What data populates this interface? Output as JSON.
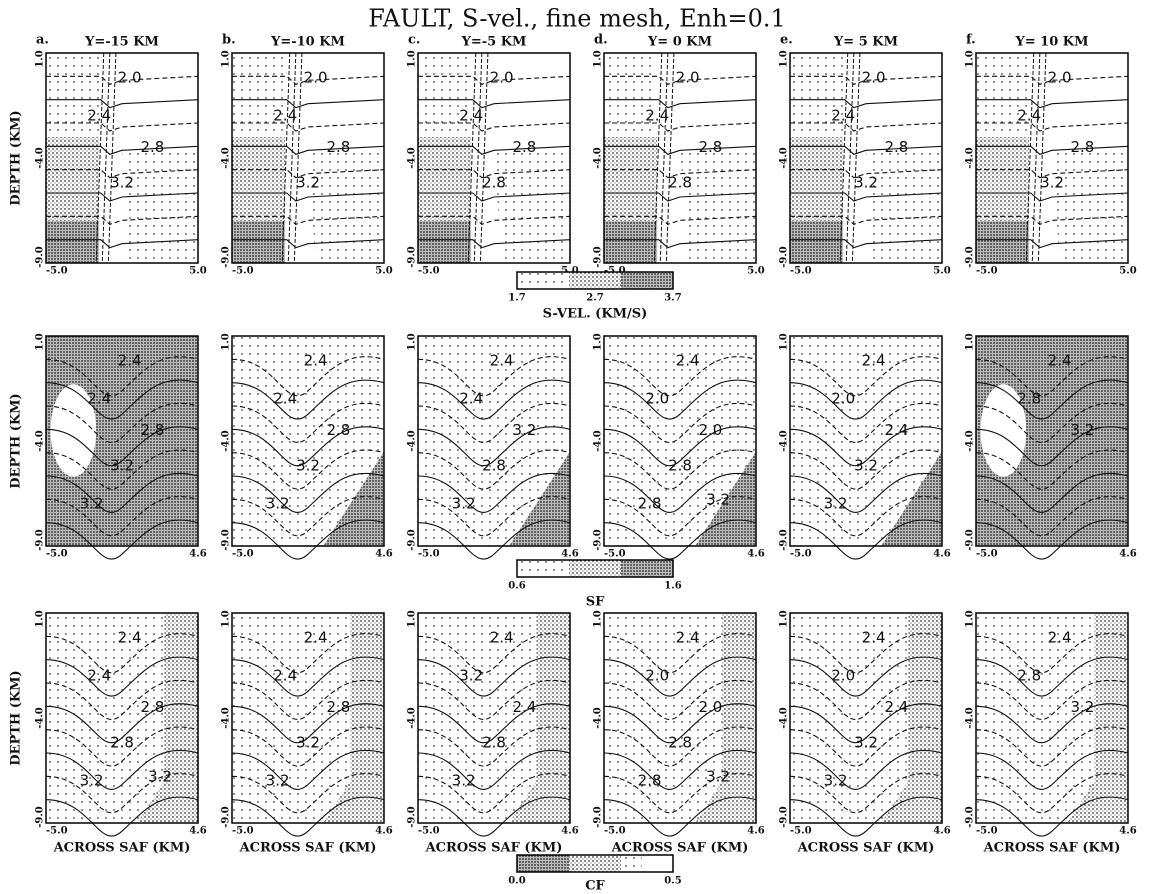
{
  "title": "FAULT, S-vel., fine mesh, Enh=0.1",
  "columns": [
    {
      "letter": "a.",
      "label": "Y=-15 KM"
    },
    {
      "letter": "b.",
      "label": "Y=-10 KM"
    },
    {
      "letter": "c.",
      "label": "Y=-5 KM"
    },
    {
      "letter": "d.",
      "label": "Y= 0 KM"
    },
    {
      "letter": "e.",
      "label": "Y= 5 KM"
    },
    {
      "letter": "f.",
      "label": "Y= 10 KM"
    }
  ],
  "rows": [
    {
      "y_label": "DEPTH (KM)",
      "y_ticks": [
        "1.0",
        "-4.0",
        "-9.0"
      ],
      "x_ticks": [
        "-5.0",
        "5.0"
      ],
      "contour_labels": [
        [
          "2.0",
          "2.4",
          "2.8",
          "3.2"
        ],
        [
          "2.0",
          "2.4",
          "2.8",
          "3.2"
        ],
        [
          "2.0",
          "2.4",
          "2.8",
          "2.8"
        ],
        [
          "2.0",
          "2.4",
          "2.8",
          "2.8"
        ],
        [
          "2.0",
          "2.4",
          "2.8",
          "3.2"
        ],
        [
          "2.0",
          "2.4",
          "2.8",
          "3.2"
        ]
      ],
      "colorbar": {
        "ticks": [
          "1.7",
          "2.7",
          "3.7"
        ],
        "label": "S-VEL. (KM/S)"
      }
    },
    {
      "y_label": "DEPTH (KM)",
      "y_ticks": [
        "1.0",
        "-4.0",
        "-9.0"
      ],
      "x_ticks": [
        "-5.0",
        "4.6"
      ],
      "contour_labels": [
        [
          "2.4",
          "2.4",
          "2.8",
          "3.2",
          "3.2"
        ],
        [
          "2.4",
          "2.4",
          "2.8",
          "3.2",
          "3.2"
        ],
        [
          "2.4",
          "2.4",
          "3.2",
          "2.8",
          "3.2"
        ],
        [
          "2.4",
          "2.0",
          "2.0",
          "2.8",
          "2.8",
          "3.2"
        ],
        [
          "2.4",
          "2.0",
          "2.4",
          "3.2",
          "3.2"
        ],
        [
          "2.4",
          "2.8",
          "3.2"
        ]
      ],
      "colorbar": {
        "ticks": [
          "0.6",
          "1.6"
        ],
        "label": "SF"
      }
    },
    {
      "y_label": "DEPTH (KM)",
      "y_ticks": [
        "1.0",
        "-4.0",
        "-9.0"
      ],
      "x_ticks": [
        "-5.0",
        "4.6"
      ],
      "x_label": "ACROSS SAF (KM)",
      "contour_labels": [
        [
          "2.4",
          "2.4",
          "2.8",
          "2.8",
          "3.2",
          "3.2"
        ],
        [
          "2.4",
          "2.4",
          "2.8",
          "3.2",
          "3.2"
        ],
        [
          "2.4",
          "3.2",
          "2.4",
          "2.8",
          "3.2"
        ],
        [
          "2.4",
          "2.0",
          "2.0",
          "2.8",
          "2.8",
          "3.2"
        ],
        [
          "2.4",
          "2.0",
          "2.4",
          "3.2",
          "3.2"
        ],
        [
          "2.4",
          "2.8",
          "3.2"
        ]
      ],
      "colorbar": {
        "ticks": [
          "0.0",
          "0.5"
        ],
        "label": "CF"
      }
    }
  ]
}
